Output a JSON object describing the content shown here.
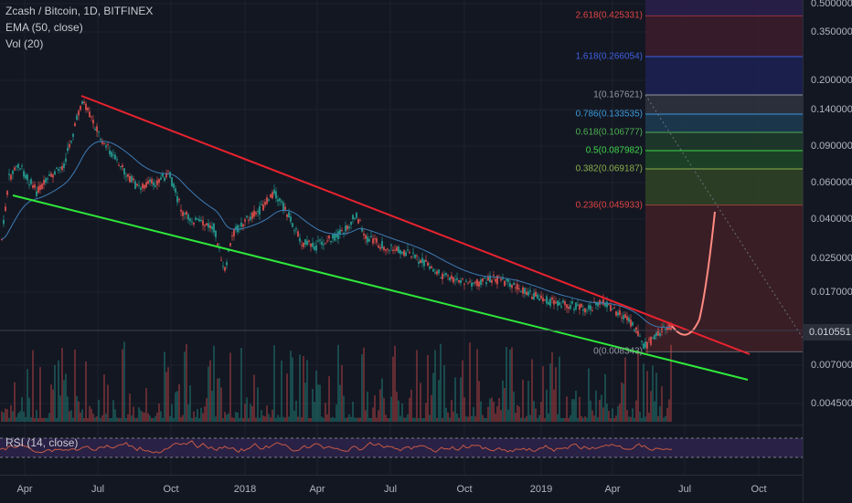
{
  "legend": {
    "symbol": "Zcash / Bitcoin, 1D, BITFINEX",
    "ema": "EMA (50, close)",
    "vol": "Vol (20)"
  },
  "rsi_label": "RSI (14, close)",
  "price_axis": [
    "0.500000",
    "0.350000",
    "0.200000",
    "0.140000",
    "0.090000",
    "0.060000",
    "0.040000",
    "0.025000",
    "0.017000",
    "0.007000",
    "0.004500"
  ],
  "current_price": "0.010551",
  "time_axis": [
    "Apr",
    "Jul",
    "Oct",
    "2018",
    "Apr",
    "Jul",
    "Oct",
    "2019",
    "Apr",
    "Jul",
    "Oct"
  ],
  "fib_levels": [
    {
      "label": "2.618(0.425331)",
      "color": "#e04545",
      "fill": "#3b1c2c"
    },
    {
      "label": "1.618(0.266054)",
      "color": "#3f5fe0",
      "fill": "#1c2150"
    },
    {
      "label": "1(0.167621)",
      "color": "#9598a1",
      "fill": "#2e323e"
    },
    {
      "label": "0.786(0.133535)",
      "color": "#3a9ad9",
      "fill": "#1d3a4f"
    },
    {
      "label": "0.618(0.106777)",
      "color": "#4caf50",
      "fill": "#1f3a2b"
    },
    {
      "label": "0.5(0.087982)",
      "color": "#3fd64a",
      "fill": "#1d4526"
    },
    {
      "label": "0.382(0.069187)",
      "color": "#8bb04a",
      "fill": "#304126"
    },
    {
      "label": "0.236(0.045933)",
      "color": "#e04545",
      "fill": "#3e2028"
    },
    {
      "label": "0(0.008343)",
      "color": "#9598a1",
      "fill": ""
    }
  ],
  "colors": {
    "background": "#131722",
    "upper_trendline": "#e8232f",
    "lower_trendline": "#2ee83a",
    "ema": "#3e7bb3",
    "candle_up": "#26a69a",
    "candle_down": "#ef5350",
    "rsi_line": "#c65a44",
    "rsi_band": "#2a2146",
    "projection": "#ff8a80"
  }
}
